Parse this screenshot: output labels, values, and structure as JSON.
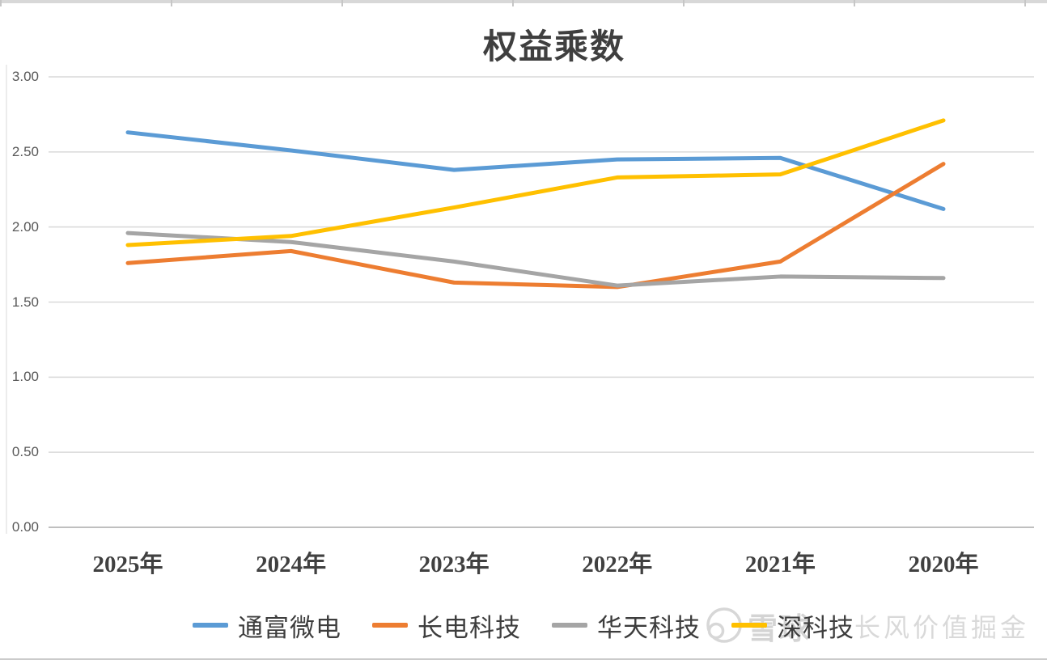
{
  "chart_data": {
    "type": "line",
    "title": "权益乘数",
    "categories": [
      "2025年",
      "2024年",
      "2023年",
      "2022年",
      "2021年",
      "2020年"
    ],
    "series": [
      {
        "name": "通富微电",
        "color": "#5B9BD5",
        "values": [
          2.63,
          2.51,
          2.38,
          2.45,
          2.46,
          2.12
        ]
      },
      {
        "name": "长电科技",
        "color": "#ED7D31",
        "values": [
          1.76,
          1.84,
          1.63,
          1.6,
          1.77,
          2.42
        ]
      },
      {
        "name": "华天科技",
        "color": "#A5A5A5",
        "values": [
          1.96,
          1.9,
          1.77,
          1.61,
          1.67,
          1.66
        ]
      },
      {
        "name": "深科技",
        "color": "#FFC000",
        "values": [
          1.88,
          1.94,
          2.13,
          2.33,
          2.35,
          2.71
        ]
      }
    ],
    "ylim": [
      0,
      3
    ],
    "yticks": [
      0,
      0.5,
      1,
      1.5,
      2,
      2.5,
      3
    ],
    "ytick_labels": [
      "0.00",
      "0.50",
      "1.00",
      "1.50",
      "2.00",
      "2.50",
      "3.00"
    ],
    "grid": true,
    "legend_position": "bottom",
    "line_width": 5,
    "grid_color": "#D9D9D9",
    "axis_color": "#BFBFBF"
  },
  "watermark": {
    "logo": "xueqiu-snowball-logo",
    "brand": "雪球",
    "text": "长风价值掘金",
    "color": "#D9D9D9"
  }
}
